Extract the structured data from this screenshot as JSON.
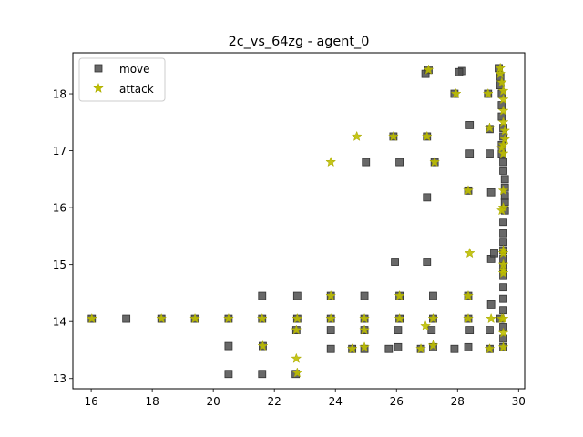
{
  "chart_data": {
    "type": "scatter",
    "title": "2c_vs_64zg - agent_0",
    "xlabel": "",
    "ylabel": "",
    "xlim": [
      15.4,
      30.2
    ],
    "ylim": [
      12.82,
      18.72
    ],
    "xticks": [
      "16",
      "18",
      "20",
      "22",
      "24",
      "26",
      "28",
      "30"
    ],
    "yticks": [
      "13",
      "14",
      "15",
      "16",
      "17",
      "18"
    ],
    "grid": false,
    "legend_position": "top-left",
    "series": [
      {
        "name": "move",
        "marker": "square",
        "color": "#4d4d4d",
        "points": [
          [
            16.02,
            14.05
          ],
          [
            17.15,
            14.05
          ],
          [
            18.3,
            14.05
          ],
          [
            19.4,
            14.05
          ],
          [
            20.5,
            14.05
          ],
          [
            21.6,
            14.05
          ],
          [
            22.75,
            14.05
          ],
          [
            23.85,
            14.05
          ],
          [
            24.95,
            14.05
          ],
          [
            26.1,
            14.05
          ],
          [
            27.2,
            14.05
          ],
          [
            28.35,
            14.05
          ],
          [
            29.4,
            14.05
          ],
          [
            20.5,
            13.57
          ],
          [
            21.62,
            13.57
          ],
          [
            22.72,
            13.85
          ],
          [
            23.85,
            13.85
          ],
          [
            24.95,
            13.85
          ],
          [
            26.05,
            13.85
          ],
          [
            27.15,
            13.85
          ],
          [
            28.4,
            13.85
          ],
          [
            29.05,
            13.85
          ],
          [
            20.5,
            13.08
          ],
          [
            21.6,
            13.08
          ],
          [
            22.7,
            13.08
          ],
          [
            23.85,
            13.52
          ],
          [
            24.55,
            13.52
          ],
          [
            24.95,
            13.52
          ],
          [
            25.75,
            13.52
          ],
          [
            26.05,
            13.55
          ],
          [
            26.8,
            13.52
          ],
          [
            27.2,
            13.55
          ],
          [
            27.9,
            13.52
          ],
          [
            28.35,
            13.55
          ],
          [
            29.05,
            13.52
          ],
          [
            21.6,
            14.45
          ],
          [
            22.75,
            14.45
          ],
          [
            23.85,
            14.45
          ],
          [
            24.95,
            14.45
          ],
          [
            26.1,
            14.45
          ],
          [
            27.2,
            14.45
          ],
          [
            28.35,
            14.45
          ],
          [
            29.1,
            14.3
          ],
          [
            25.95,
            15.05
          ],
          [
            27.0,
            15.05
          ],
          [
            29.1,
            15.1
          ],
          [
            29.2,
            15.2
          ],
          [
            27.0,
            16.18
          ],
          [
            28.35,
            16.3
          ],
          [
            29.1,
            16.27
          ],
          [
            25.0,
            16.8
          ],
          [
            26.1,
            16.8
          ],
          [
            27.25,
            16.8
          ],
          [
            28.4,
            16.95
          ],
          [
            29.05,
            16.95
          ],
          [
            25.9,
            17.25
          ],
          [
            27.0,
            17.25
          ],
          [
            28.4,
            17.45
          ],
          [
            29.05,
            17.38
          ],
          [
            28.15,
            18.4
          ],
          [
            28.05,
            18.38
          ],
          [
            27.05,
            18.42
          ],
          [
            26.95,
            18.35
          ],
          [
            27.9,
            18.0
          ],
          [
            29.0,
            18.0
          ],
          [
            29.35,
            18.45
          ],
          [
            29.4,
            18.3
          ],
          [
            29.4,
            18.15
          ],
          [
            29.45,
            18.0
          ],
          [
            29.45,
            17.8
          ],
          [
            29.45,
            17.6
          ],
          [
            29.5,
            17.4
          ],
          [
            29.5,
            17.25
          ],
          [
            29.45,
            17.1
          ],
          [
            29.45,
            16.95
          ],
          [
            29.5,
            16.8
          ],
          [
            29.5,
            16.65
          ],
          [
            29.55,
            16.5
          ],
          [
            29.55,
            16.35
          ],
          [
            29.55,
            16.2
          ],
          [
            29.55,
            16.1
          ],
          [
            29.55,
            15.95
          ],
          [
            29.5,
            15.75
          ],
          [
            29.5,
            15.55
          ],
          [
            29.5,
            15.4
          ],
          [
            29.5,
            15.25
          ],
          [
            29.5,
            15.1
          ],
          [
            29.5,
            14.95
          ],
          [
            29.5,
            14.8
          ],
          [
            29.5,
            14.6
          ],
          [
            29.5,
            14.4
          ],
          [
            29.5,
            14.2
          ],
          [
            29.5,
            13.9
          ],
          [
            29.5,
            13.7
          ],
          [
            29.5,
            13.55
          ]
        ]
      },
      {
        "name": "attack",
        "marker": "star",
        "color": "#bfbf00",
        "points": [
          [
            16.02,
            14.05
          ],
          [
            18.3,
            14.05
          ],
          [
            19.4,
            14.05
          ],
          [
            20.5,
            14.05
          ],
          [
            21.6,
            14.05
          ],
          [
            22.75,
            14.05
          ],
          [
            23.85,
            14.05
          ],
          [
            24.95,
            14.05
          ],
          [
            26.1,
            14.05
          ],
          [
            27.2,
            14.05
          ],
          [
            28.35,
            14.05
          ],
          [
            29.1,
            14.05
          ],
          [
            29.45,
            14.05
          ],
          [
            21.62,
            13.57
          ],
          [
            22.72,
            13.35
          ],
          [
            22.75,
            13.1
          ],
          [
            22.72,
            13.85
          ],
          [
            24.95,
            13.85
          ],
          [
            26.95,
            13.92
          ],
          [
            27.2,
            13.58
          ],
          [
            24.55,
            13.52
          ],
          [
            24.95,
            13.55
          ],
          [
            26.8,
            13.52
          ],
          [
            29.05,
            13.52
          ],
          [
            29.5,
            13.55
          ],
          [
            23.85,
            14.45
          ],
          [
            26.1,
            14.45
          ],
          [
            28.35,
            14.45
          ],
          [
            28.4,
            15.2
          ],
          [
            29.5,
            15.2
          ],
          [
            29.5,
            15.0
          ],
          [
            29.5,
            14.85
          ],
          [
            28.35,
            16.3
          ],
          [
            29.5,
            16.3
          ],
          [
            29.5,
            16.0
          ],
          [
            29.45,
            15.95
          ],
          [
            23.85,
            16.8
          ],
          [
            27.25,
            16.8
          ],
          [
            24.7,
            17.25
          ],
          [
            25.9,
            17.25
          ],
          [
            27.0,
            17.25
          ],
          [
            29.05,
            17.4
          ],
          [
            27.95,
            18.0
          ],
          [
            29.0,
            18.0
          ],
          [
            27.05,
            18.42
          ],
          [
            29.4,
            18.45
          ],
          [
            29.4,
            18.35
          ],
          [
            29.45,
            18.2
          ],
          [
            29.5,
            18.05
          ],
          [
            29.5,
            17.9
          ],
          [
            29.5,
            17.7
          ],
          [
            29.5,
            17.5
          ],
          [
            29.55,
            17.35
          ],
          [
            29.55,
            17.2
          ],
          [
            29.5,
            17.1
          ],
          [
            29.45,
            17.05
          ],
          [
            29.5,
            16.95
          ],
          [
            29.5,
            15.25
          ],
          [
            29.5,
            14.9
          ],
          [
            29.5,
            14.05
          ],
          [
            29.5,
            13.8
          ]
        ]
      }
    ]
  }
}
